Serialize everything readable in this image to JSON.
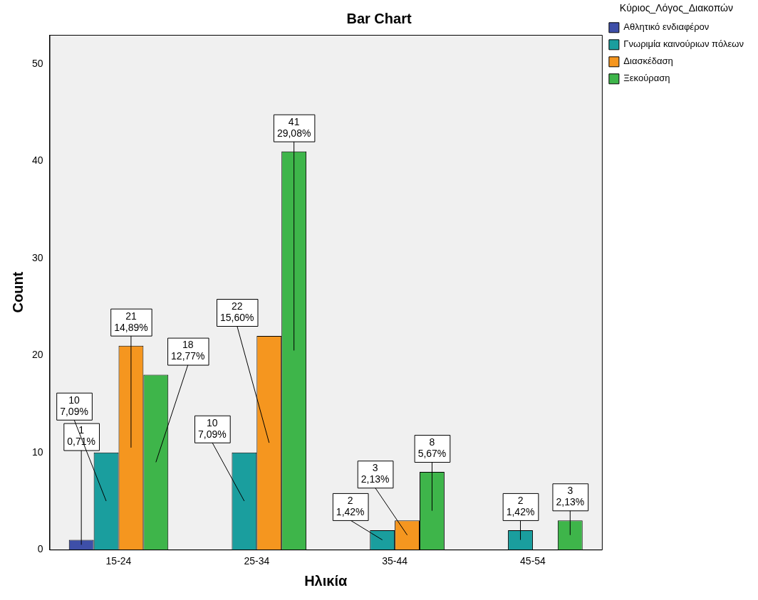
{
  "chart_data": {
    "type": "bar",
    "title": "Bar Chart",
    "xlabel": "Ηλικία",
    "ylabel": "Count",
    "legend_title": "Κύριος_Λόγος_Διακοπών",
    "legend": "top right",
    "categories": [
      "15-24",
      "25-34",
      "35-44",
      "45-54"
    ],
    "ylim": [
      0,
      53
    ],
    "yticks": [
      0,
      10,
      20,
      30,
      40,
      50
    ],
    "series": [
      {
        "name": "Αθλητικό ενδιαφέρον",
        "color": "#3e4fa8",
        "values": [
          1,
          null,
          null,
          null
        ],
        "value_labels": [
          "1\n0,71%",
          null,
          null,
          null
        ]
      },
      {
        "name": "Γνωριμία καινούριων πόλεων",
        "color": "#1a9e9e",
        "values": [
          10,
          10,
          2,
          2
        ],
        "value_labels": [
          "10\n7,09%",
          "10\n7,09%",
          "2\n1,42%",
          "2\n1,42%"
        ]
      },
      {
        "name": "Διασκέδαση",
        "color": "#f5961f",
        "values": [
          21,
          22,
          3,
          null
        ],
        "value_labels": [
          "21\n14,89%",
          "22\n15,60%",
          "3\n2,13%",
          null
        ]
      },
      {
        "name": "Ξεκούραση",
        "color": "#3eb54a",
        "values": [
          18,
          41,
          8,
          3
        ],
        "value_labels": [
          "18\n12,77%",
          "41\n29,08%",
          "8\n5,67%",
          "3\n2,13%"
        ]
      }
    ]
  }
}
